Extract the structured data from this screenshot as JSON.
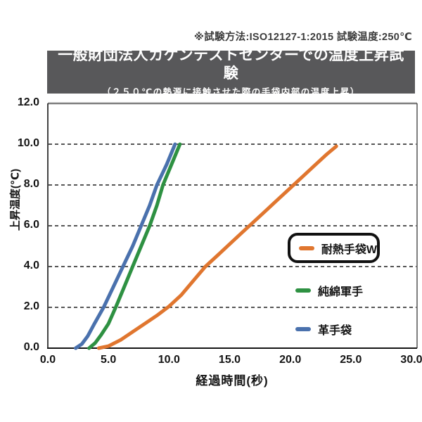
{
  "caption": "※試験方法:ISO12127-1:2015 試験温度:250℃",
  "banner": {
    "title": "一般財団法人カケンテストセンターでの温度上昇試験",
    "subtitle": "（２５０℃の熱源に接触させた際の手袋内部の温度上昇）",
    "bg_color": "#58585a",
    "text_color": "#ffffff"
  },
  "chart_data": {
    "type": "line",
    "title": "一般財団法人カケンテストセンターでの温度上昇試験",
    "subtitle": "（２５０℃の熱源に接触させた際の手袋内部の温度上昇）",
    "xlabel": "経過時間(秒)",
    "ylabel": "上昇温度(℃)",
    "xlim": [
      0,
      30
    ],
    "ylim": [
      0,
      12
    ],
    "xticks": [
      "0.0",
      "5.0",
      "10.0",
      "15.0",
      "20.0",
      "25.0",
      "30.0"
    ],
    "yticks": [
      "0.0",
      "2.0",
      "4.0",
      "6.0",
      "8.0",
      "10.0",
      "12.0"
    ],
    "grid": "horizontal dashed lines at 2.0 °C intervals",
    "legend_position": "inside right",
    "series": [
      {
        "name": "耐熱手袋W",
        "color": "#e0762f",
        "boxed_in_legend": true,
        "points": [
          [
            4.2,
            0
          ],
          [
            5.0,
            0.1
          ],
          [
            6.0,
            0.4
          ],
          [
            7.0,
            0.8
          ],
          [
            8.0,
            1.2
          ],
          [
            9.0,
            1.6
          ],
          [
            10.0,
            2.05
          ],
          [
            11.0,
            2.6
          ],
          [
            12.0,
            3.3
          ],
          [
            13.0,
            4.0
          ],
          [
            14.0,
            4.55
          ],
          [
            15.0,
            5.1
          ],
          [
            16.0,
            5.65
          ],
          [
            17.0,
            6.2
          ],
          [
            18.0,
            6.75
          ],
          [
            19.0,
            7.3
          ],
          [
            20.0,
            7.85
          ],
          [
            21.0,
            8.4
          ],
          [
            22.0,
            8.95
          ],
          [
            23.0,
            9.5
          ],
          [
            23.8,
            9.9
          ]
        ]
      },
      {
        "name": "純綿軍手",
        "color": "#2e9142",
        "boxed_in_legend": false,
        "points": [
          [
            3.4,
            0
          ],
          [
            3.9,
            0.25
          ],
          [
            4.4,
            0.65
          ],
          [
            5.0,
            1.2
          ],
          [
            5.6,
            2.0
          ],
          [
            6.3,
            3.0
          ],
          [
            7.0,
            4.0
          ],
          [
            7.7,
            5.0
          ],
          [
            8.4,
            6.0
          ],
          [
            9.0,
            7.0
          ],
          [
            9.5,
            8.0
          ],
          [
            10.2,
            9.0
          ],
          [
            10.9,
            10.0
          ]
        ]
      },
      {
        "name": "革手袋",
        "color": "#4a71ad",
        "boxed_in_legend": false,
        "points": [
          [
            2.3,
            0
          ],
          [
            2.8,
            0.2
          ],
          [
            3.3,
            0.6
          ],
          [
            3.8,
            1.15
          ],
          [
            4.6,
            2.0
          ],
          [
            5.4,
            3.0
          ],
          [
            6.2,
            4.0
          ],
          [
            7.0,
            5.0
          ],
          [
            7.7,
            6.0
          ],
          [
            8.4,
            7.0
          ],
          [
            9.0,
            8.0
          ],
          [
            9.8,
            9.0
          ],
          [
            10.5,
            10.0
          ]
        ]
      }
    ]
  }
}
